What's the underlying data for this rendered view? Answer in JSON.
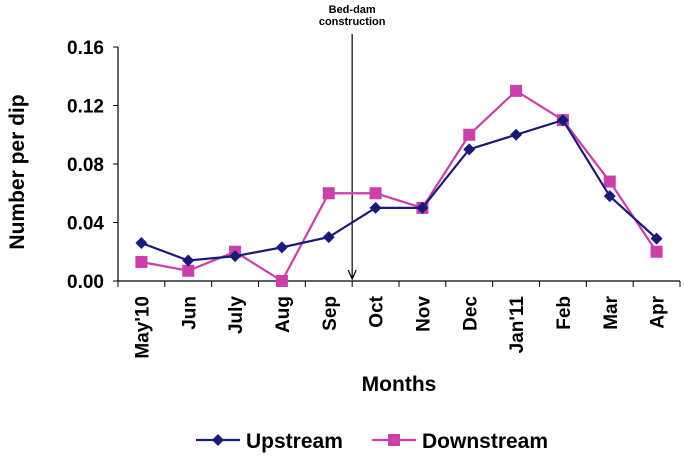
{
  "chart_data": {
    "type": "line",
    "title": "",
    "xlabel": "Months",
    "ylabel": "Number per dip",
    "categories": [
      "May'10",
      "Jun",
      "July",
      "Aug",
      "Sep",
      "Oct",
      "Nov",
      "Dec",
      "Jan'11",
      "Feb",
      "Mar",
      "Apr"
    ],
    "ylim": [
      0,
      0.16
    ],
    "yticks": [
      "0.00",
      "0.04",
      "0.08",
      "0.12",
      "0.16"
    ],
    "grid": false,
    "legend_position": "bottom",
    "series": [
      {
        "name": "Upstream",
        "color": "#1a1a7a",
        "marker": "diamond",
        "values": [
          0.026,
          0.014,
          0.017,
          0.023,
          0.03,
          0.05,
          0.05,
          0.09,
          0.1,
          0.11,
          0.058,
          0.029
        ]
      },
      {
        "name": "Downstream",
        "color": "#cc3fa8",
        "marker": "square",
        "values": [
          0.013,
          0.007,
          0.02,
          0.0,
          0.06,
          0.06,
          0.05,
          0.1,
          0.13,
          0.11,
          0.068,
          0.02
        ]
      }
    ],
    "annotations": [
      {
        "text_lines": [
          "Bed-dam",
          "construction"
        ],
        "x_between": [
          "Sep",
          "Oct"
        ]
      }
    ]
  }
}
